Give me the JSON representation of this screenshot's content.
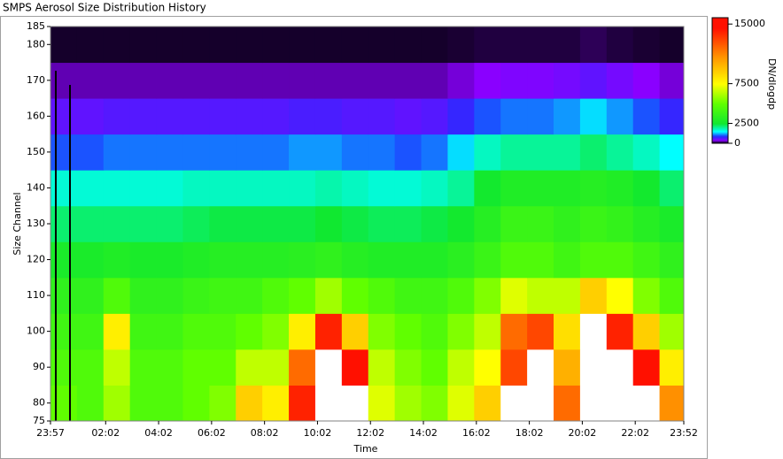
{
  "chart_data": {
    "type": "heatmap",
    "title": "SMPS Aerosol Size Distribution History",
    "xlabel": "Time",
    "ylabel": "Size Channel",
    "colorbar_label": "DN/dlogdp",
    "xlim": [
      -3,
      1432
    ],
    "xticks": [
      {
        "value": -3,
        "label": "23:57"
      },
      {
        "value": 122,
        "label": "02:02"
      },
      {
        "value": 242,
        "label": "04:02"
      },
      {
        "value": 362,
        "label": "06:02"
      },
      {
        "value": 482,
        "label": "08:02"
      },
      {
        "value": 602,
        "label": "10:02"
      },
      {
        "value": 722,
        "label": "12:02"
      },
      {
        "value": 842,
        "label": "14:02"
      },
      {
        "value": 962,
        "label": "16:02"
      },
      {
        "value": 1082,
        "label": "18:02"
      },
      {
        "value": 1202,
        "label": "20:02"
      },
      {
        "value": 1322,
        "label": "22:02"
      },
      {
        "value": 1432,
        "label": "23:52"
      }
    ],
    "ylim": [
      75,
      185
    ],
    "yticks": [
      75,
      80,
      90,
      100,
      110,
      120,
      130,
      140,
      150,
      160,
      170,
      180,
      185
    ],
    "zlim": [
      0,
      15800
    ],
    "zticks": [
      0,
      2500,
      7500,
      15000
    ],
    "colormap": [
      [
        0,
        "#000000"
      ],
      [
        150,
        "#200040"
      ],
      [
        400,
        "#8a00ff"
      ],
      [
        900,
        "#2030ff"
      ],
      [
        1500,
        "#00ffff"
      ],
      [
        2500,
        "#10e830"
      ],
      [
        5000,
        "#60ff00"
      ],
      [
        7500,
        "#ffff00"
      ],
      [
        11000,
        "#ff9000"
      ],
      [
        14500,
        "#ff1000"
      ]
    ],
    "over_color": "#ffffff",
    "xbins": [
      -3,
      57,
      117,
      177,
      237,
      297,
      357,
      417,
      477,
      537,
      597,
      657,
      717,
      777,
      837,
      897,
      957,
      1017,
      1077,
      1137,
      1197,
      1257,
      1317,
      1377,
      1432
    ],
    "ybins": [
      75,
      85,
      95,
      105,
      115,
      125,
      135,
      145,
      155,
      165,
      175,
      185
    ],
    "z": [
      [
        5000,
        4500,
        6000,
        4500,
        4500,
        5000,
        5500,
        9000,
        8000,
        14000,
        17000,
        16000,
        7000,
        6000,
        5500,
        7000,
        9000,
        16000,
        17000,
        12000,
        17000,
        17000,
        16500,
        11000
      ],
      [
        4500,
        4500,
        6500,
        4500,
        4500,
        5000,
        5000,
        6500,
        6500,
        12000,
        17000,
        15000,
        6500,
        5500,
        5000,
        6500,
        7500,
        13000,
        16500,
        10000,
        17000,
        16500,
        15000,
        8000
      ],
      [
        4000,
        4000,
        8000,
        4000,
        4000,
        4500,
        4500,
        5000,
        5500,
        8000,
        14000,
        9000,
        5500,
        5000,
        4500,
        5500,
        6500,
        12000,
        13000,
        8500,
        16000,
        14000,
        9000,
        6000
      ],
      [
        3500,
        3500,
        4500,
        3500,
        3500,
        3800,
        4000,
        4000,
        4500,
        5000,
        6000,
        5000,
        4500,
        4000,
        4000,
        4500,
        5500,
        7000,
        6500,
        6500,
        9000,
        7500,
        5500,
        4500
      ],
      [
        2800,
        2800,
        3000,
        2800,
        2800,
        3000,
        3200,
        3200,
        3200,
        3300,
        3500,
        3200,
        3000,
        3000,
        3000,
        3300,
        3800,
        4500,
        4500,
        4000,
        4500,
        4500,
        4000,
        3500
      ],
      [
        2200,
        2200,
        2200,
        2200,
        2200,
        2300,
        2400,
        2400,
        2400,
        2400,
        2500,
        2400,
        2300,
        2300,
        2400,
        2600,
        3200,
        3800,
        3800,
        3500,
        3800,
        3600,
        3200,
        2800
      ],
      [
        1700,
        1700,
        1700,
        1700,
        1700,
        1800,
        1800,
        1800,
        1800,
        1800,
        1900,
        1800,
        1700,
        1700,
        1800,
        2000,
        2600,
        3000,
        3000,
        3000,
        3200,
        3000,
        2600,
        2200
      ],
      [
        1000,
        1000,
        1100,
        1100,
        1100,
        1100,
        1100,
        1100,
        1100,
        1200,
        1200,
        1100,
        1100,
        1000,
        1100,
        1400,
        1800,
        2000,
        2000,
        2000,
        2200,
        2000,
        1800,
        1500
      ],
      [
        600,
        600,
        650,
        650,
        650,
        650,
        650,
        650,
        650,
        700,
        700,
        650,
        650,
        600,
        650,
        800,
        1000,
        1100,
        1100,
        1200,
        1400,
        1200,
        1000,
        800
      ],
      [
        300,
        300,
        300,
        300,
        300,
        300,
        300,
        300,
        300,
        300,
        300,
        300,
        300,
        300,
        300,
        350,
        400,
        450,
        450,
        500,
        600,
        500,
        400,
        350
      ],
      [
        100,
        100,
        100,
        100,
        100,
        100,
        100,
        100,
        100,
        100,
        100,
        100,
        100,
        100,
        100,
        120,
        150,
        150,
        150,
        150,
        180,
        150,
        120,
        100
      ]
    ]
  }
}
